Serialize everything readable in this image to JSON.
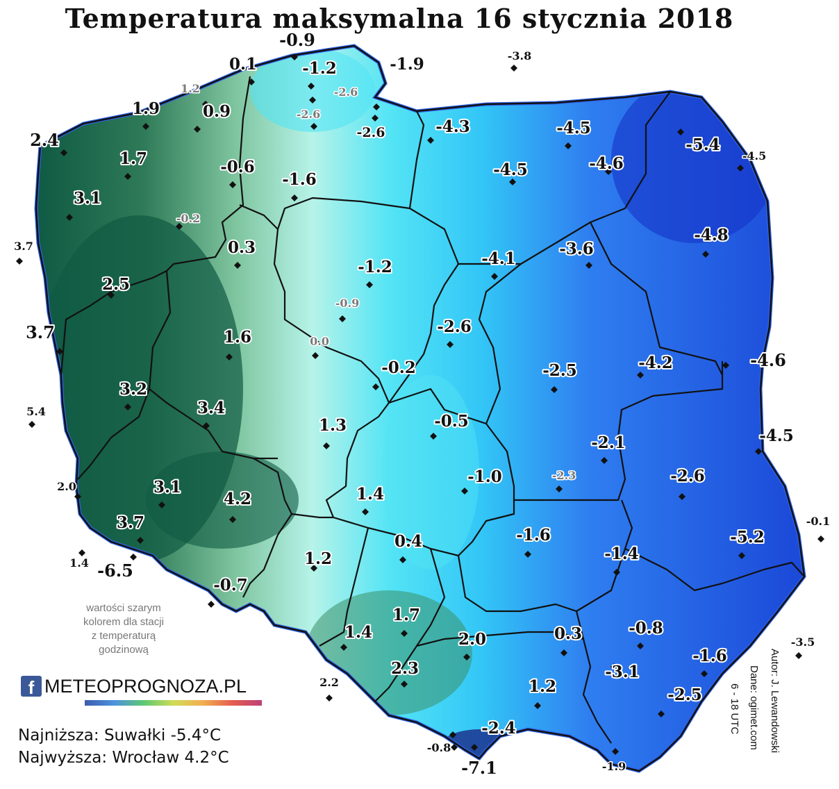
{
  "title": "Temperatura maksymalna 16 stycznia 2018",
  "note": [
    "wartości szarym",
    "kolorem dla stacji",
    "z temperaturą",
    "godzinową"
  ],
  "logo": {
    "fb_letter": "f",
    "brand": "METEOPROGNOZA.PL"
  },
  "stats": {
    "lowest": "Najniższa: Suwałki -5.4°C",
    "highest": "Najwyższa: Wrocław 4.2°C"
  },
  "credits": [
    "Autor: J. Lewandowski",
    "Dane: ogimet.com",
    "6 - 18 UTC"
  ],
  "colors": {
    "coldest": "#1b48d8",
    "cold": "#2f7ef0",
    "cool": "#33c6f6",
    "near_zero": "#b6f3e9",
    "mild": "#7fc59f",
    "warm": "#3c8f68",
    "warmest": "#0f5a43",
    "border": "#111111"
  },
  "stations": [
    {
      "value": "-0.9",
      "gray": false
    },
    {
      "value": "0.1",
      "gray": false
    },
    {
      "value": "-1.2",
      "gray": false
    },
    {
      "value": "-1.9",
      "gray": false
    },
    {
      "value": "-3.8",
      "gray": false
    },
    {
      "value": "1.2",
      "gray": true
    },
    {
      "value": "-2.6",
      "gray": true
    },
    {
      "value": "-2.6",
      "gray": true
    },
    {
      "value": "1.9",
      "gray": false
    },
    {
      "value": "0.9",
      "gray": false
    },
    {
      "value": "-2.6",
      "gray": false
    },
    {
      "value": "-4.3",
      "gray": false
    },
    {
      "value": "-4.5",
      "gray": false
    },
    {
      "value": "-5.4",
      "gray": false
    },
    {
      "value": "2.4",
      "gray": false
    },
    {
      "value": "1.7",
      "gray": false
    },
    {
      "value": "-0.6",
      "gray": false
    },
    {
      "value": "-1.6",
      "gray": false
    },
    {
      "value": "-4.5",
      "gray": false
    },
    {
      "value": "-4.6",
      "gray": false
    },
    {
      "value": "-4.5",
      "gray": false
    },
    {
      "value": "3.1",
      "gray": false
    },
    {
      "value": "-0.2",
      "gray": true
    },
    {
      "value": "-4.8",
      "gray": false
    },
    {
      "value": "3.7",
      "gray": false
    },
    {
      "value": "0.3",
      "gray": false
    },
    {
      "value": "-4.1",
      "gray": false
    },
    {
      "value": "-3.6",
      "gray": false
    },
    {
      "value": "-1.2",
      "gray": false
    },
    {
      "value": "2.5",
      "gray": false
    },
    {
      "value": "-0.9",
      "gray": true
    },
    {
      "value": "-2.6",
      "gray": false
    },
    {
      "value": "3.7",
      "gray": false
    },
    {
      "value": "1.6",
      "gray": false
    },
    {
      "value": "0.0",
      "gray": true
    },
    {
      "value": "-4.6",
      "gray": false
    },
    {
      "value": "-0.2",
      "gray": false
    },
    {
      "value": "-2.5",
      "gray": false
    },
    {
      "value": "-4.2",
      "gray": false
    },
    {
      "value": "3.2",
      "gray": false
    },
    {
      "value": "5.4",
      "gray": false
    },
    {
      "value": "3.4",
      "gray": false
    },
    {
      "value": "1.3",
      "gray": false
    },
    {
      "value": "-0.5",
      "gray": false
    },
    {
      "value": "-4.5",
      "gray": false
    },
    {
      "value": "-2.1",
      "gray": false
    },
    {
      "value": "-2.6",
      "gray": false
    },
    {
      "value": "2.0",
      "gray": false
    },
    {
      "value": "3.1",
      "gray": false
    },
    {
      "value": "-1.0",
      "gray": false
    },
    {
      "value": "-2.3",
      "gray": true
    },
    {
      "value": "1.4",
      "gray": false
    },
    {
      "value": "4.2",
      "gray": false
    },
    {
      "value": "3.7",
      "gray": false
    },
    {
      "value": "-0.1",
      "gray": false
    },
    {
      "value": "-5.2",
      "gray": false
    },
    {
      "value": "0.4",
      "gray": false
    },
    {
      "value": "-1.6",
      "gray": false
    },
    {
      "value": "1.4",
      "gray": false
    },
    {
      "value": "-6.5",
      "gray": false
    },
    {
      "value": "1.2",
      "gray": false
    },
    {
      "value": "-1.4",
      "gray": false
    },
    {
      "value": "-0.7",
      "gray": false
    },
    {
      "value": "1.7",
      "gray": false
    },
    {
      "value": "-0.8",
      "gray": false
    },
    {
      "value": "0.3",
      "gray": false
    },
    {
      "value": "-3.5",
      "gray": false
    },
    {
      "value": "1.4",
      "gray": false
    },
    {
      "value": "2.0",
      "gray": false
    },
    {
      "value": "-1.6",
      "gray": false
    },
    {
      "value": "-3.1",
      "gray": false
    },
    {
      "value": "2.3",
      "gray": false
    },
    {
      "value": "2.2",
      "gray": false
    },
    {
      "value": "1.2",
      "gray": false
    },
    {
      "value": "-2.5",
      "gray": false
    },
    {
      "value": "-2.4",
      "gray": false
    },
    {
      "value": "-0.8",
      "gray": false
    },
    {
      "value": "-1.9",
      "gray": false
    },
    {
      "value": "-7.1",
      "gray": false
    }
  ]
}
